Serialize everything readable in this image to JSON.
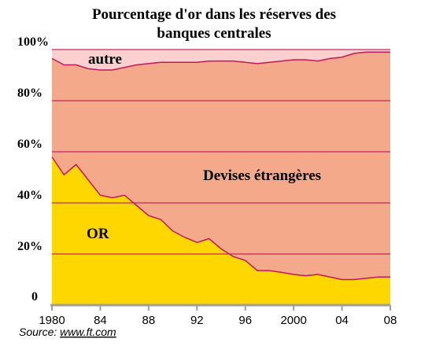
{
  "chart_data": {
    "type": "area",
    "stacked": true,
    "title_lines": [
      "Pourcentage d'or dans les réserves des",
      "banques centrales"
    ],
    "source_label": "Source: ",
    "source_link": "www.ft.com",
    "x": [
      1980,
      1981,
      1982,
      1983,
      1984,
      1985,
      1986,
      1987,
      1988,
      1989,
      1990,
      1991,
      1992,
      1993,
      1994,
      1995,
      1996,
      1997,
      1998,
      1999,
      2000,
      2001,
      2002,
      2003,
      2004,
      2005,
      2006,
      2007,
      2008
    ],
    "xlim": [
      1980,
      2008
    ],
    "ylim": [
      0,
      100
    ],
    "x_ticks": [
      "1980",
      "84",
      "88",
      "92",
      "96",
      "2000",
      "04",
      "08"
    ],
    "x_tick_values": [
      1980,
      1984,
      1988,
      1992,
      1996,
      2000,
      2004,
      2008
    ],
    "y_ticks": [
      "0",
      "20%",
      "40%",
      "60%",
      "80%",
      "100%"
    ],
    "y_tick_values": [
      0,
      20,
      40,
      60,
      80,
      100
    ],
    "grid": true,
    "series": [
      {
        "name": "OR",
        "color": "#ffd700",
        "upper": [
          58,
          51,
          55,
          49,
          43,
          42,
          43,
          39,
          35,
          33.5,
          29,
          26.5,
          24.5,
          26,
          22,
          19,
          17.5,
          13.5,
          13.5,
          12.8,
          12,
          11.5,
          12,
          11,
          10,
          10,
          10.5,
          11,
          11
        ]
      },
      {
        "name": "Devises étrangères",
        "color": "#f4a98a",
        "upper": [
          96.5,
          94,
          94,
          92.5,
          92,
          92,
          93,
          94,
          94.5,
          95,
          95,
          95,
          95,
          95.5,
          95.5,
          95.5,
          95,
          94.5,
          95,
          95.5,
          96,
          96,
          95.5,
          96.5,
          97,
          98.5,
          99,
          99,
          99
        ]
      },
      {
        "name": "autre",
        "color": "#fbd0ce",
        "upper": [
          100,
          100,
          100,
          100,
          100,
          100,
          100,
          100,
          100,
          100,
          100,
          100,
          100,
          100,
          100,
          100,
          100,
          100,
          100,
          100,
          100,
          100,
          100,
          100,
          100,
          100,
          100,
          100,
          100
        ]
      }
    ],
    "line_color": "#c2185b"
  }
}
